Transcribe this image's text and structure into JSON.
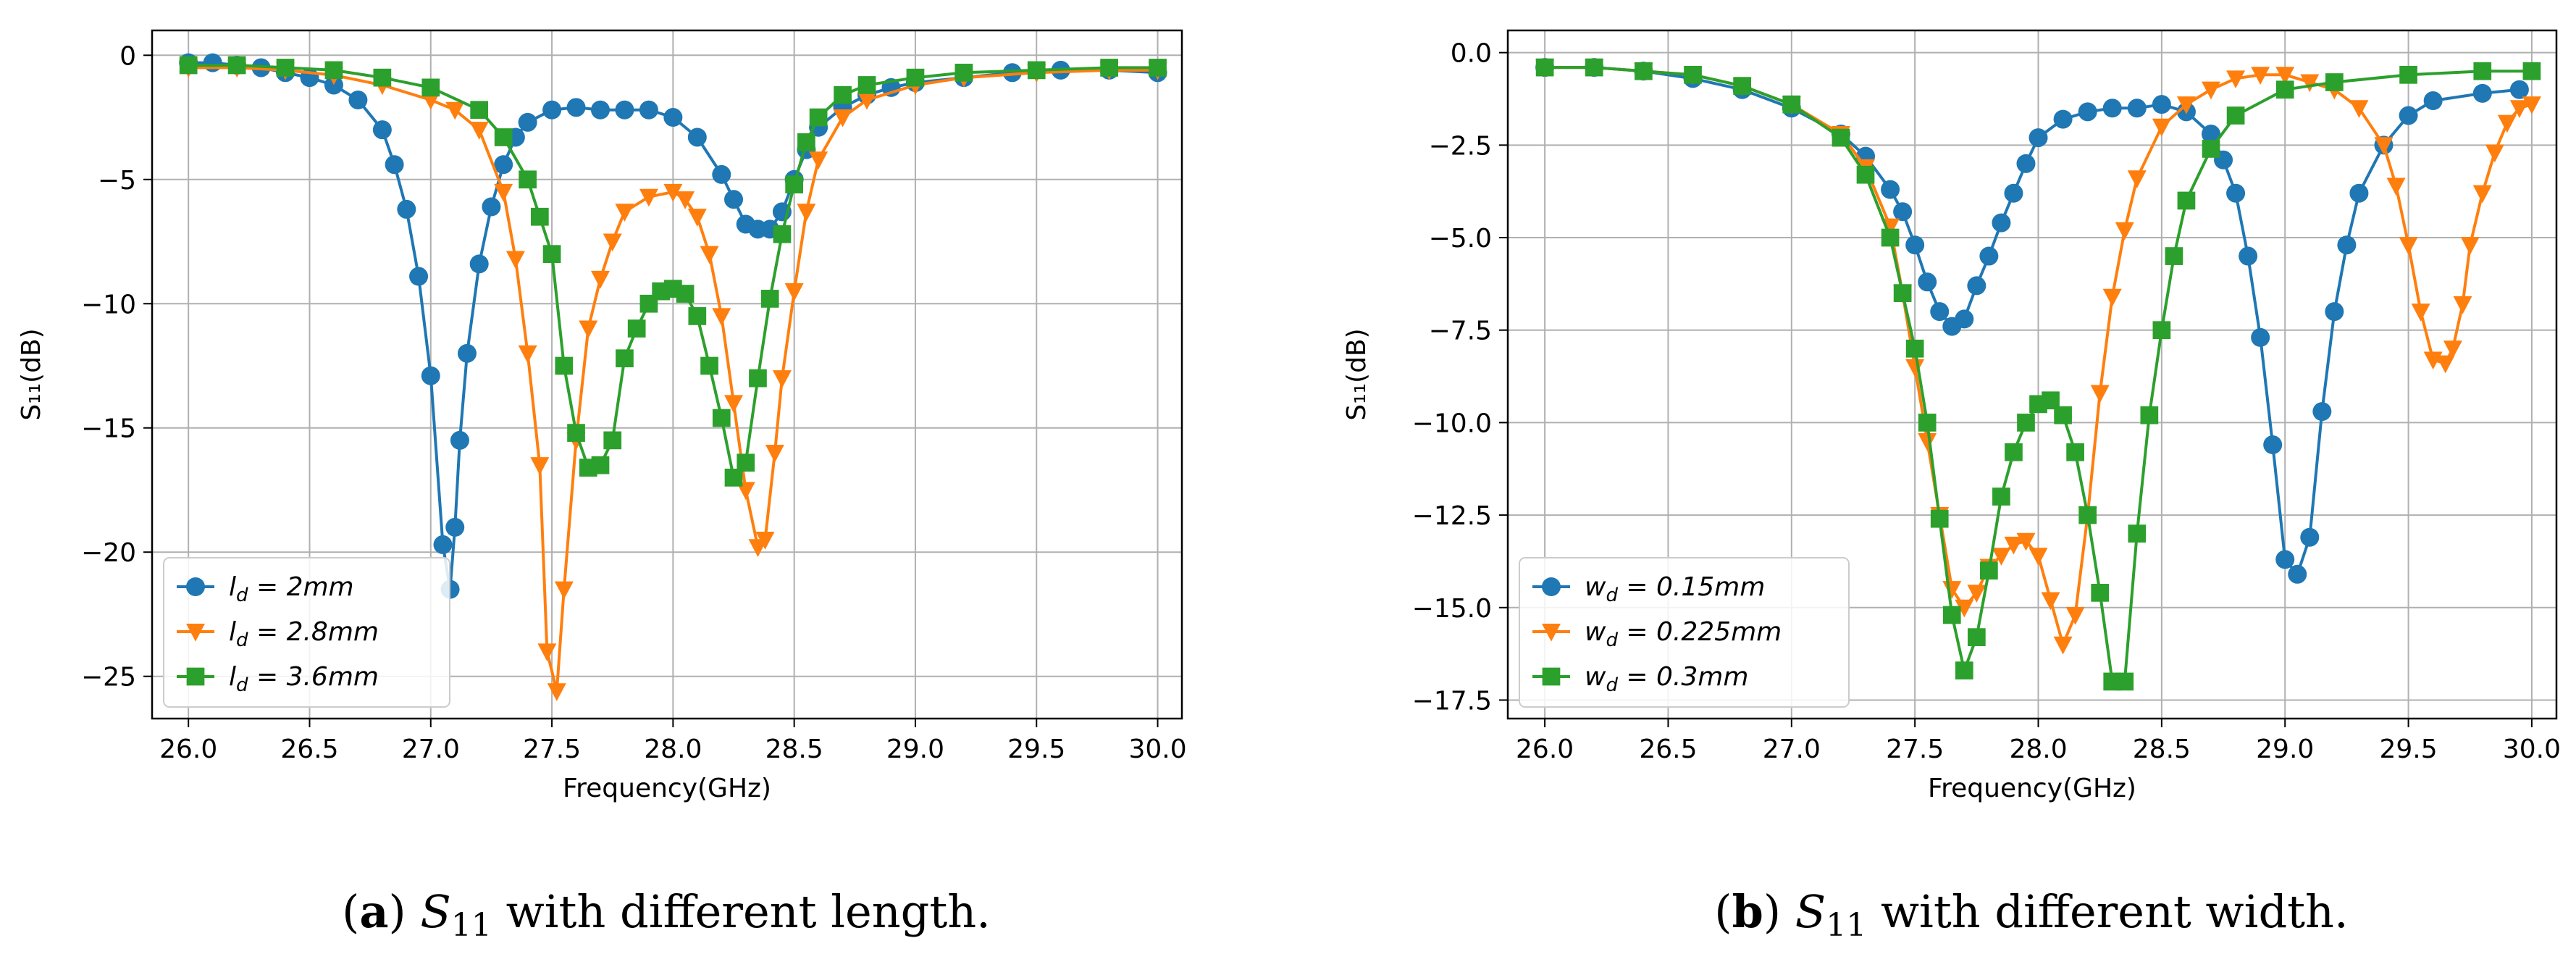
{
  "chart_data": [
    {
      "id": "a",
      "type": "line",
      "caption": {
        "letter": "a",
        "text": " with different length."
      },
      "xlabel": "Frequency(GHz)",
      "ylabel": "S₁₁(dB)",
      "xlim": [
        25.85,
        30.1
      ],
      "ylim": [
        -26.7,
        1.0
      ],
      "xticks": [
        26.0,
        26.5,
        27.0,
        27.5,
        28.0,
        28.5,
        29.0,
        29.5,
        30.0
      ],
      "yticks": [
        0,
        -5,
        -10,
        -15,
        -20,
        -25
      ],
      "ytick_format": "int",
      "grid": true,
      "legend_position": "lower-left",
      "series": [
        {
          "name": "l_d = 2mm",
          "color": "#1f77b4",
          "marker": "circle",
          "x": [
            26.0,
            26.1,
            26.2,
            26.3,
            26.4,
            26.5,
            26.6,
            26.7,
            26.8,
            26.85,
            26.9,
            26.95,
            27.0,
            27.05,
            27.08,
            27.1,
            27.12,
            27.15,
            27.2,
            27.25,
            27.3,
            27.35,
            27.4,
            27.5,
            27.6,
            27.7,
            27.8,
            27.9,
            28.0,
            28.1,
            28.2,
            28.25,
            28.3,
            28.35,
            28.4,
            28.45,
            28.5,
            28.55,
            28.6,
            28.7,
            28.8,
            28.9,
            29.0,
            29.2,
            29.4,
            29.6,
            29.8,
            30.0
          ],
          "y": [
            -0.3,
            -0.3,
            -0.4,
            -0.5,
            -0.7,
            -0.9,
            -1.2,
            -1.8,
            -3.0,
            -4.4,
            -6.2,
            -8.9,
            -12.9,
            -19.7,
            -21.5,
            -19.0,
            -15.5,
            -12.0,
            -8.4,
            -6.1,
            -4.4,
            -3.3,
            -2.7,
            -2.2,
            -2.1,
            -2.2,
            -2.2,
            -2.2,
            -2.5,
            -3.3,
            -4.8,
            -5.8,
            -6.8,
            -7.0,
            -7.0,
            -6.3,
            -5.0,
            -3.8,
            -2.9,
            -2.1,
            -1.6,
            -1.3,
            -1.1,
            -0.9,
            -0.7,
            -0.6,
            -0.6,
            -0.7
          ]
        },
        {
          "name": "l_d = 2.8mm",
          "color": "#ff7f0e",
          "marker": "triangle-down",
          "x": [
            26.0,
            26.2,
            26.4,
            26.6,
            26.8,
            27.0,
            27.1,
            27.2,
            27.3,
            27.35,
            27.4,
            27.45,
            27.48,
            27.52,
            27.55,
            27.6,
            27.65,
            27.7,
            27.75,
            27.8,
            27.9,
            28.0,
            28.05,
            28.1,
            28.15,
            28.2,
            28.25,
            28.3,
            28.35,
            28.38,
            28.42,
            28.45,
            28.5,
            28.55,
            28.6,
            28.7,
            28.8,
            29.0,
            29.2,
            29.5,
            29.8,
            30.0
          ],
          "y": [
            -0.5,
            -0.5,
            -0.6,
            -0.8,
            -1.2,
            -1.8,
            -2.2,
            -3.0,
            -5.5,
            -8.2,
            -12.0,
            -16.5,
            -24.0,
            -25.6,
            -21.5,
            -15.5,
            -11.0,
            -9.0,
            -7.5,
            -6.3,
            -5.7,
            -5.5,
            -5.8,
            -6.5,
            -8.0,
            -10.5,
            -14.0,
            -17.5,
            -19.8,
            -19.5,
            -16.0,
            -13.0,
            -9.5,
            -6.3,
            -4.2,
            -2.5,
            -1.8,
            -1.2,
            -0.9,
            -0.7,
            -0.6,
            -0.6
          ]
        },
        {
          "name": "l_d = 3.6mm",
          "color": "#2ca02c",
          "marker": "square",
          "x": [
            26.0,
            26.2,
            26.4,
            26.6,
            26.8,
            27.0,
            27.2,
            27.3,
            27.4,
            27.45,
            27.5,
            27.55,
            27.6,
            27.65,
            27.7,
            27.75,
            27.8,
            27.85,
            27.9,
            27.95,
            28.0,
            28.05,
            28.1,
            28.15,
            28.2,
            28.25,
            28.3,
            28.35,
            28.4,
            28.45,
            28.5,
            28.55,
            28.6,
            28.7,
            28.8,
            29.0,
            29.2,
            29.5,
            29.8,
            30.0
          ],
          "y": [
            -0.4,
            -0.4,
            -0.5,
            -0.6,
            -0.9,
            -1.3,
            -2.2,
            -3.3,
            -5.0,
            -6.5,
            -8.0,
            -12.5,
            -15.2,
            -16.6,
            -16.5,
            -15.5,
            -12.2,
            -11.0,
            -10.0,
            -9.5,
            -9.4,
            -9.6,
            -10.5,
            -12.5,
            -14.6,
            -17.0,
            -16.4,
            -13.0,
            -9.8,
            -7.2,
            -5.2,
            -3.5,
            -2.5,
            -1.6,
            -1.2,
            -0.9,
            -0.7,
            -0.6,
            -0.5,
            -0.5
          ]
        }
      ]
    },
    {
      "id": "b",
      "type": "line",
      "caption": {
        "letter": "b",
        "text": " with different width."
      },
      "xlabel": "Frequency(GHz)",
      "ylabel": "S₁₁(dB)",
      "xlim": [
        25.85,
        30.1
      ],
      "ylim": [
        -18.0,
        0.6
      ],
      "xticks": [
        26.0,
        26.5,
        27.0,
        27.5,
        28.0,
        28.5,
        29.0,
        29.5,
        30.0
      ],
      "yticks": [
        0.0,
        -2.5,
        -5.0,
        -7.5,
        -10.0,
        -12.5,
        -15.0,
        -17.5
      ],
      "ytick_format": "fixed1",
      "grid": true,
      "legend_position": "lower-left",
      "series": [
        {
          "name": "w_d = 0.15mm",
          "color": "#1f77b4",
          "marker": "circle",
          "x": [
            26.0,
            26.2,
            26.4,
            26.6,
            26.8,
            27.0,
            27.2,
            27.3,
            27.4,
            27.45,
            27.5,
            27.55,
            27.6,
            27.65,
            27.7,
            27.75,
            27.8,
            27.85,
            27.9,
            27.95,
            28.0,
            28.1,
            28.2,
            28.3,
            28.4,
            28.5,
            28.6,
            28.7,
            28.75,
            28.8,
            28.85,
            28.9,
            28.95,
            29.0,
            29.05,
            29.1,
            29.15,
            29.2,
            29.25,
            29.3,
            29.4,
            29.5,
            29.6,
            29.8,
            29.95
          ],
          "y": [
            -0.4,
            -0.4,
            -0.5,
            -0.7,
            -1.0,
            -1.5,
            -2.2,
            -2.8,
            -3.7,
            -4.3,
            -5.2,
            -6.2,
            -7.0,
            -7.4,
            -7.2,
            -6.3,
            -5.5,
            -4.6,
            -3.8,
            -3.0,
            -2.3,
            -1.8,
            -1.6,
            -1.5,
            -1.5,
            -1.4,
            -1.6,
            -2.2,
            -2.9,
            -3.8,
            -5.5,
            -7.7,
            -10.6,
            -13.7,
            -14.1,
            -13.1,
            -9.7,
            -7.0,
            -5.2,
            -3.8,
            -2.5,
            -1.7,
            -1.3,
            -1.1,
            -1.0
          ]
        },
        {
          "name": "w_d = 0.225mm",
          "color": "#ff7f0e",
          "marker": "triangle-down",
          "x": [
            26.0,
            26.2,
            26.4,
            26.6,
            26.8,
            27.0,
            27.2,
            27.3,
            27.4,
            27.45,
            27.5,
            27.55,
            27.6,
            27.65,
            27.7,
            27.75,
            27.8,
            27.85,
            27.9,
            27.95,
            28.0,
            28.05,
            28.1,
            28.15,
            28.2,
            28.25,
            28.3,
            28.35,
            28.4,
            28.5,
            28.6,
            28.7,
            28.8,
            28.9,
            29.0,
            29.1,
            29.2,
            29.3,
            29.4,
            29.45,
            29.5,
            29.55,
            29.6,
            29.65,
            29.68,
            29.72,
            29.75,
            29.8,
            29.85,
            29.9,
            29.95,
            30.0
          ],
          "y": [
            -0.4,
            -0.4,
            -0.5,
            -0.6,
            -0.9,
            -1.4,
            -2.2,
            -3.1,
            -4.7,
            -6.5,
            -8.5,
            -10.5,
            -12.5,
            -14.5,
            -15.0,
            -14.6,
            -13.9,
            -13.6,
            -13.3,
            -13.2,
            -13.6,
            -14.8,
            -16.0,
            -15.2,
            -12.5,
            -9.2,
            -6.6,
            -4.8,
            -3.4,
            -2.0,
            -1.4,
            -1.0,
            -0.7,
            -0.6,
            -0.6,
            -0.8,
            -1.0,
            -1.5,
            -2.5,
            -3.6,
            -5.2,
            -7.0,
            -8.3,
            -8.4,
            -8.0,
            -6.8,
            -5.2,
            -3.8,
            -2.7,
            -1.9,
            -1.5,
            -1.4
          ]
        },
        {
          "name": "w_d = 0.3mm",
          "color": "#2ca02c",
          "marker": "square",
          "x": [
            26.0,
            26.2,
            26.4,
            26.6,
            26.8,
            27.0,
            27.2,
            27.3,
            27.4,
            27.45,
            27.5,
            27.55,
            27.6,
            27.65,
            27.7,
            27.75,
            27.8,
            27.85,
            27.9,
            27.95,
            28.0,
            28.05,
            28.1,
            28.15,
            28.2,
            28.25,
            28.3,
            28.35,
            28.4,
            28.45,
            28.5,
            28.55,
            28.6,
            28.7,
            28.8,
            29.0,
            29.2,
            29.5,
            29.8,
            30.0
          ],
          "y": [
            -0.4,
            -0.4,
            -0.5,
            -0.6,
            -0.9,
            -1.4,
            -2.3,
            -3.3,
            -5.0,
            -6.5,
            -8.0,
            -10.0,
            -12.6,
            -15.2,
            -16.7,
            -15.8,
            -14.0,
            -12.0,
            -10.8,
            -10.0,
            -9.5,
            -9.4,
            -9.8,
            -10.8,
            -12.5,
            -14.6,
            -17.0,
            -17.0,
            -13.0,
            -9.8,
            -7.5,
            -5.5,
            -4.0,
            -2.6,
            -1.7,
            -1.0,
            -0.8,
            -0.6,
            -0.5,
            -0.5
          ]
        }
      ]
    }
  ]
}
